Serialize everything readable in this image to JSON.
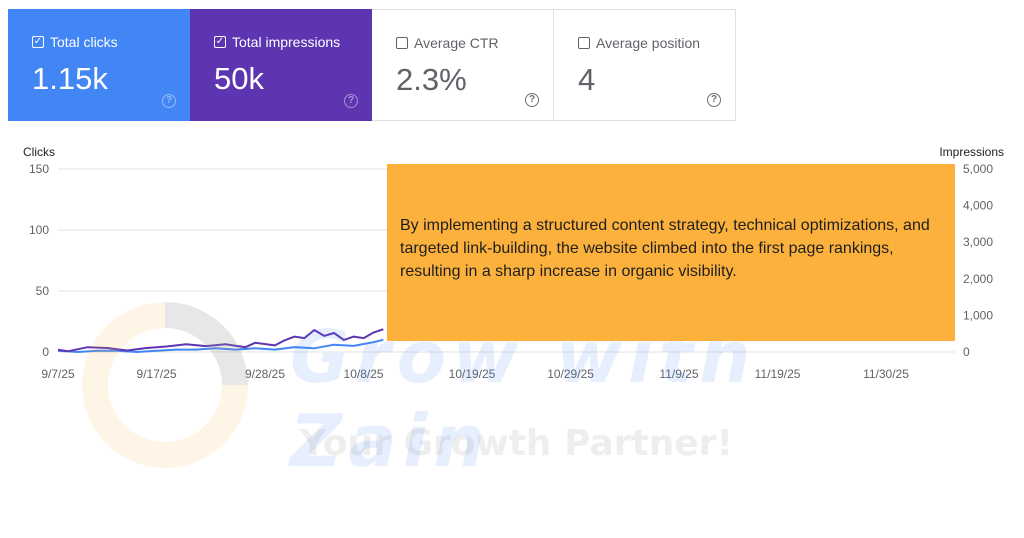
{
  "metrics": [
    {
      "label": "Total clicks",
      "value": "1.15k",
      "checked": true,
      "color": "#4285f4"
    },
    {
      "label": "Total impressions",
      "value": "50k",
      "checked": true,
      "color": "#5e35b1"
    },
    {
      "label": "Average CTR",
      "value": "2.3%",
      "checked": false
    },
    {
      "label": "Average position",
      "value": "4",
      "checked": false
    }
  ],
  "chart_data": {
    "type": "line",
    "ylabel": "Clicks",
    "y2label": "Impressions",
    "ylim": [
      0,
      150
    ],
    "y2lim": [
      0,
      5000
    ],
    "y_ticks": [
      "150",
      "100",
      "50",
      "0"
    ],
    "y2_ticks": [
      "5,000",
      "4,000",
      "3,000",
      "2,000",
      "1,000",
      "0"
    ],
    "x_ticks": [
      "9/7/25",
      "9/17/25",
      "9/28/25",
      "10/8/25",
      "10/19/25",
      "10/29/25",
      "11/9/25",
      "11/19/25",
      "11/30/25"
    ],
    "x_start": "2025-09-07",
    "series": [
      {
        "name": "Clicks",
        "axis": "left",
        "color": "#4285f4",
        "x": [
          "2025-09-07",
          "2025-09-09",
          "2025-09-11",
          "2025-09-13",
          "2025-09-15",
          "2025-09-17",
          "2025-09-19",
          "2025-09-21",
          "2025-09-23",
          "2025-09-25",
          "2025-09-27",
          "2025-09-29",
          "2025-10-01",
          "2025-10-03",
          "2025-10-05",
          "2025-10-07",
          "2025-10-09",
          "2025-10-10"
        ],
        "y": [
          1,
          0,
          1,
          1,
          0,
          1,
          2,
          2,
          3,
          2,
          3,
          2,
          4,
          3,
          6,
          5,
          8,
          10
        ]
      },
      {
        "name": "Impressions",
        "axis": "right",
        "color": "#5e35b1",
        "x": [
          "2025-09-07",
          "2025-09-08",
          "2025-09-10",
          "2025-09-12",
          "2025-09-14",
          "2025-09-16",
          "2025-09-18",
          "2025-09-20",
          "2025-09-22",
          "2025-09-24",
          "2025-09-26",
          "2025-09-27",
          "2025-09-29",
          "2025-09-30",
          "2025-10-01",
          "2025-10-02",
          "2025-10-03",
          "2025-10-04",
          "2025-10-05",
          "2025-10-06",
          "2025-10-07",
          "2025-10-08",
          "2025-10-09",
          "2025-10-10"
        ],
        "y": [
          60,
          20,
          130,
          110,
          40,
          110,
          150,
          210,
          160,
          210,
          130,
          250,
          180,
          320,
          420,
          380,
          600,
          440,
          520,
          330,
          420,
          380,
          530,
          620
        ]
      }
    ]
  },
  "callout": {
    "text": "By implementing a structured content strategy, technical optimizations, and targeted link-building, the website climbed into the first page rankings, resulting in a sharp increase in organic visibility."
  },
  "watermark": {
    "title": "Grow with Zain",
    "subtitle": "Your Growth Partner!"
  }
}
